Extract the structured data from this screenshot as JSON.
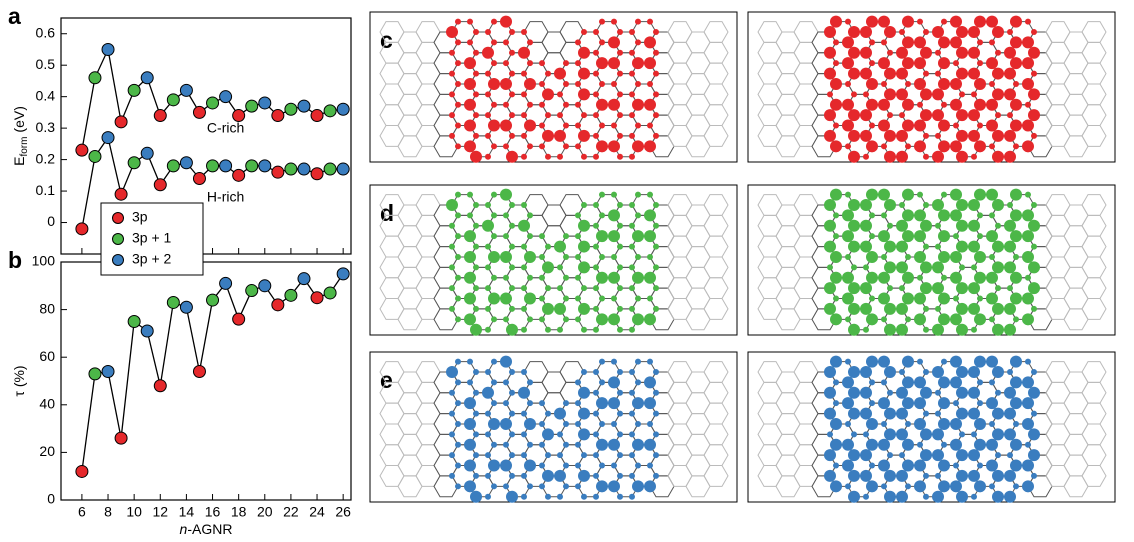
{
  "chart_data": [
    {
      "type": "line",
      "panel_label": "a",
      "x": [
        6,
        7,
        8,
        9,
        10,
        11,
        12,
        13,
        14,
        15,
        16,
        17,
        18,
        19,
        20,
        21,
        22,
        23,
        24,
        25,
        26
      ],
      "xlim": [
        4.4,
        26.6
      ],
      "xticks": [
        6,
        8,
        10,
        12,
        14,
        16,
        18,
        20,
        22,
        24,
        26
      ],
      "ylim": [
        -0.1,
        0.65
      ],
      "yticks": [
        0,
        0.1,
        0.2,
        0.3,
        0.4,
        0.5,
        0.6
      ],
      "ylabel": {
        "main": "E",
        "sub": "form",
        "unit": "(eV)"
      },
      "line_color": "#000000",
      "series": [
        {
          "name": "C-rich",
          "values": [
            0.23,
            0.46,
            0.55,
            0.32,
            0.42,
            0.46,
            0.34,
            0.39,
            0.42,
            0.35,
            0.38,
            0.4,
            0.34,
            0.37,
            0.38,
            0.34,
            0.36,
            0.37,
            0.34,
            0.355,
            0.36
          ]
        },
        {
          "name": "H-rich",
          "values": [
            -0.02,
            0.21,
            0.27,
            0.09,
            0.19,
            0.22,
            0.12,
            0.18,
            0.19,
            0.14,
            0.18,
            0.18,
            0.15,
            0.18,
            0.18,
            0.16,
            0.17,
            0.17,
            0.155,
            0.17,
            0.17
          ]
        }
      ],
      "marker_colors": [
        "#e5282b",
        "#4cb748",
        "#3a7dbf",
        "#e5282b",
        "#4cb748",
        "#3a7dbf",
        "#e5282b",
        "#4cb748",
        "#3a7dbf",
        "#e5282b",
        "#4cb748",
        "#3a7dbf",
        "#e5282b",
        "#4cb748",
        "#3a7dbf",
        "#e5282b",
        "#4cb748",
        "#3a7dbf",
        "#e5282b",
        "#4cb748",
        "#3a7dbf"
      ],
      "legend": [
        {
          "name": "3p",
          "color": "#e5282b"
        },
        {
          "name": "3p + 1",
          "color": "#4cb748"
        },
        {
          "name": "3p + 2",
          "color": "#3a7dbf"
        }
      ]
    },
    {
      "type": "line",
      "panel_label": "b",
      "x": [
        6,
        7,
        8,
        9,
        10,
        11,
        12,
        13,
        14,
        15,
        16,
        17,
        18,
        19,
        20,
        21,
        22,
        23,
        24,
        25,
        26
      ],
      "xlim": [
        4.4,
        26.6
      ],
      "xticks": [
        6,
        8,
        10,
        12,
        14,
        16,
        18,
        20,
        22,
        24,
        26
      ],
      "xlabel": {
        "italic": "n",
        "rest": "-AGNR"
      },
      "ylim": [
        0,
        100
      ],
      "yticks": [
        0,
        20,
        40,
        60,
        80,
        100
      ],
      "ylabel": {
        "main": "τ (%)"
      },
      "line_color": "#000000",
      "series": [
        {
          "values": [
            12,
            53,
            54,
            26,
            75,
            71,
            48,
            83,
            81,
            54,
            84,
            91,
            76,
            88,
            90,
            82,
            86,
            93,
            85,
            87,
            95
          ]
        }
      ],
      "marker_colors": [
        "#e5282b",
        "#4cb748",
        "#3a7dbf",
        "#e5282b",
        "#4cb748",
        "#3a7dbf",
        "#e5282b",
        "#4cb748",
        "#3a7dbf",
        "#e5282b",
        "#4cb748",
        "#3a7dbf",
        "#e5282b",
        "#4cb748",
        "#3a7dbf",
        "#e5282b",
        "#4cb748",
        "#3a7dbf",
        "#e5282b",
        "#4cb748",
        "#3a7dbf"
      ]
    }
  ],
  "panels": [
    {
      "label": "c",
      "color": "#e5282b"
    },
    {
      "label": "d",
      "color": "#4cb748"
    },
    {
      "label": "e",
      "color": "#3a7dbf"
    }
  ]
}
